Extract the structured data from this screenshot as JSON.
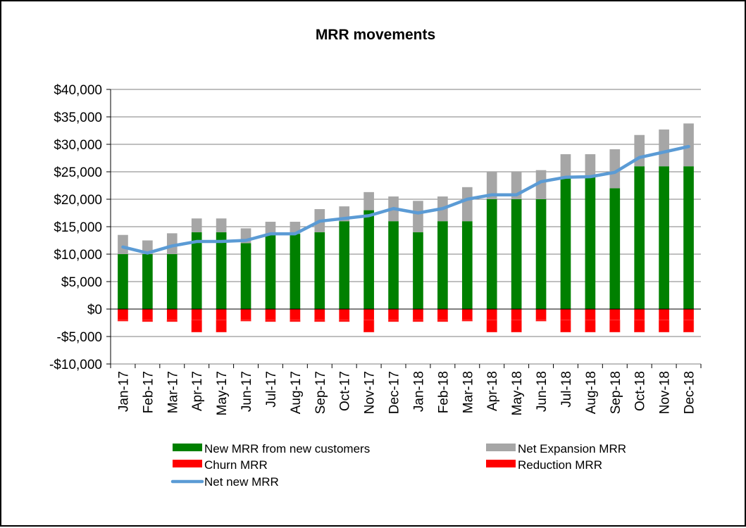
{
  "chart_data": {
    "type": "bar",
    "stacked": true,
    "title": "MRR movements",
    "xlabel": "",
    "ylabel": "",
    "ylim": [
      -10000,
      40000
    ],
    "yticks": [
      {
        "value": 40000,
        "label": "$40,000"
      },
      {
        "value": 35000,
        "label": "$35,000"
      },
      {
        "value": 30000,
        "label": "$30,000"
      },
      {
        "value": 25000,
        "label": "$25,000"
      },
      {
        "value": 20000,
        "label": "$20,000"
      },
      {
        "value": 15000,
        "label": "$15,000"
      },
      {
        "value": 10000,
        "label": "$10,000"
      },
      {
        "value": 5000,
        "label": "$5,000"
      },
      {
        "value": 0,
        "label": "$0"
      },
      {
        "value": -5000,
        "label": "-$5,000"
      },
      {
        "value": -10000,
        "label": "-$10,000"
      }
    ],
    "grid": true,
    "legend_position": "bottom",
    "categories": [
      "Jan-17",
      "Feb-17",
      "Mar-17",
      "Apr-17",
      "May-17",
      "Jun-17",
      "Jul-17",
      "Aug-17",
      "Sep-17",
      "Oct-17",
      "Nov-17",
      "Dec-17",
      "Jan-18",
      "Feb-18",
      "Mar-18",
      "Apr-18",
      "May-18",
      "Jun-18",
      "Jul-18",
      "Aug-18",
      "Sep-18",
      "Oct-18",
      "Nov-18",
      "Dec-18"
    ],
    "series": [
      {
        "name": "New MRR from new customers",
        "kind": "bar",
        "color": "#008000",
        "values": [
          10000,
          10000,
          10000,
          14000,
          14000,
          12000,
          13700,
          13700,
          14000,
          16000,
          18000,
          16000,
          14000,
          16000,
          16000,
          20000,
          20000,
          20000,
          24000,
          24000,
          22000,
          26000,
          26000,
          26000
        ]
      },
      {
        "name": "Net Expansion MRR",
        "kind": "bar",
        "color": "#a6a6a6",
        "values": [
          3500,
          2500,
          3800,
          2500,
          2500,
          2700,
          2200,
          2200,
          4200,
          2700,
          3300,
          4500,
          5700,
          4500,
          6200,
          5000,
          5000,
          5300,
          4200,
          4200,
          7100,
          5700,
          6700,
          7800
        ]
      },
      {
        "name": "Churn MRR",
        "kind": "bar",
        "color": "#ff0000",
        "values": [
          -2000,
          -2000,
          -2000,
          -2000,
          -2000,
          -2000,
          -2000,
          -2000,
          -2000,
          -2000,
          -2000,
          -2000,
          -2000,
          -2000,
          -2000,
          -2000,
          -2000,
          -2000,
          -2000,
          -2000,
          -2000,
          -2000,
          -2000,
          -2000
        ]
      },
      {
        "name": "Reduction MRR",
        "kind": "bar",
        "color": "#ff0000",
        "values": [
          -200,
          -300,
          -300,
          -2200,
          -2200,
          -200,
          -300,
          -300,
          -300,
          -300,
          -2200,
          -300,
          -300,
          -300,
          -200,
          -2200,
          -2200,
          -200,
          -2200,
          -2200,
          -2200,
          -2200,
          -2200,
          -2200
        ]
      },
      {
        "name": "Net new MRR",
        "kind": "line",
        "color": "#5b9bd5",
        "values": [
          11300,
          10200,
          11500,
          12300,
          12300,
          12500,
          13700,
          13700,
          16000,
          16500,
          17000,
          18300,
          17500,
          18300,
          20000,
          20800,
          20800,
          23200,
          24000,
          24100,
          24900,
          27600,
          28600,
          29600
        ]
      }
    ]
  }
}
